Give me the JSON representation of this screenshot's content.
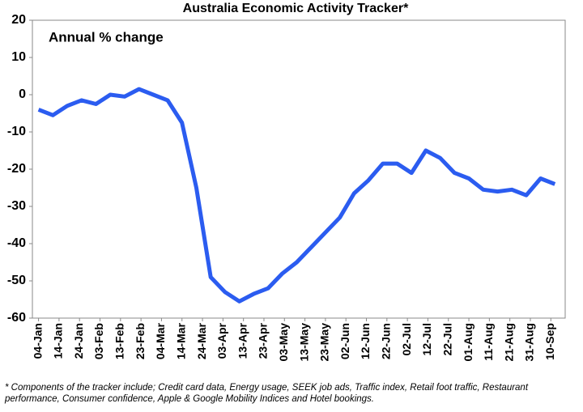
{
  "chart_data": {
    "type": "line",
    "title": "Australia Economic Activity Tracker*",
    "annotation": "Annual % change",
    "footnote": [
      "* Components of the tracker include; Credit card data, Energy usage, SEEK job ads, Traffic index, Retail foot traffic, Restaurant",
      "performance, Consumer confidence, Apple & Google Mobility Indices and Hotel bookings."
    ],
    "x": [
      "04-Jan",
      "11-Jan",
      "18-Jan",
      "25-Jan",
      "01-Feb",
      "08-Feb",
      "15-Feb",
      "22-Feb",
      "29-Feb",
      "07-Mar",
      "14-Mar",
      "21-Mar",
      "28-Mar",
      "04-Apr",
      "11-Apr",
      "18-Apr",
      "25-Apr",
      "02-May",
      "09-May",
      "16-May",
      "23-May",
      "30-May",
      "06-Jun",
      "13-Jun",
      "20-Jun",
      "27-Jun",
      "04-Jul",
      "11-Jul",
      "18-Jul",
      "25-Jul",
      "01-Aug",
      "08-Aug",
      "15-Aug",
      "22-Aug",
      "29-Aug",
      "05-Sep",
      "12-Sep"
    ],
    "series": [
      {
        "color": "#2b5cf0",
        "values": [
          -4,
          -5.5,
          -3,
          -1.5,
          -2.5,
          0,
          -0.5,
          1.5,
          0,
          -1.5,
          -7.5,
          -25,
          -49,
          -53,
          -55.5,
          -53.5,
          -52,
          -48,
          -45,
          -41,
          -37,
          -33,
          -26.5,
          -23,
          -18.5,
          -18.5,
          -21,
          -15,
          -17,
          -21,
          -22.5,
          -25.5,
          -26,
          -25.5,
          -27,
          -22.5,
          -24
        ]
      }
    ],
    "xlim": [
      "01-Jan",
      "17-Sep"
    ],
    "xticks": [
      "04-Jan",
      "14-Jan",
      "24-Jan",
      "03-Feb",
      "13-Feb",
      "23-Feb",
      "04-Mar",
      "14-Mar",
      "24-Mar",
      "03-Apr",
      "13-Apr",
      "23-Apr",
      "03-May",
      "13-May",
      "23-May",
      "02-Jun",
      "12-Jun",
      "22-Jun",
      "02-Jul",
      "12-Jul",
      "22-Jul",
      "01-Aug",
      "11-Aug",
      "21-Aug",
      "31-Aug",
      "10-Sep"
    ],
    "ylim": [
      -60,
      20
    ],
    "yticks": [
      -60,
      -50,
      -40,
      -30,
      -20,
      -10,
      0,
      10,
      20
    ],
    "grid": false
  }
}
